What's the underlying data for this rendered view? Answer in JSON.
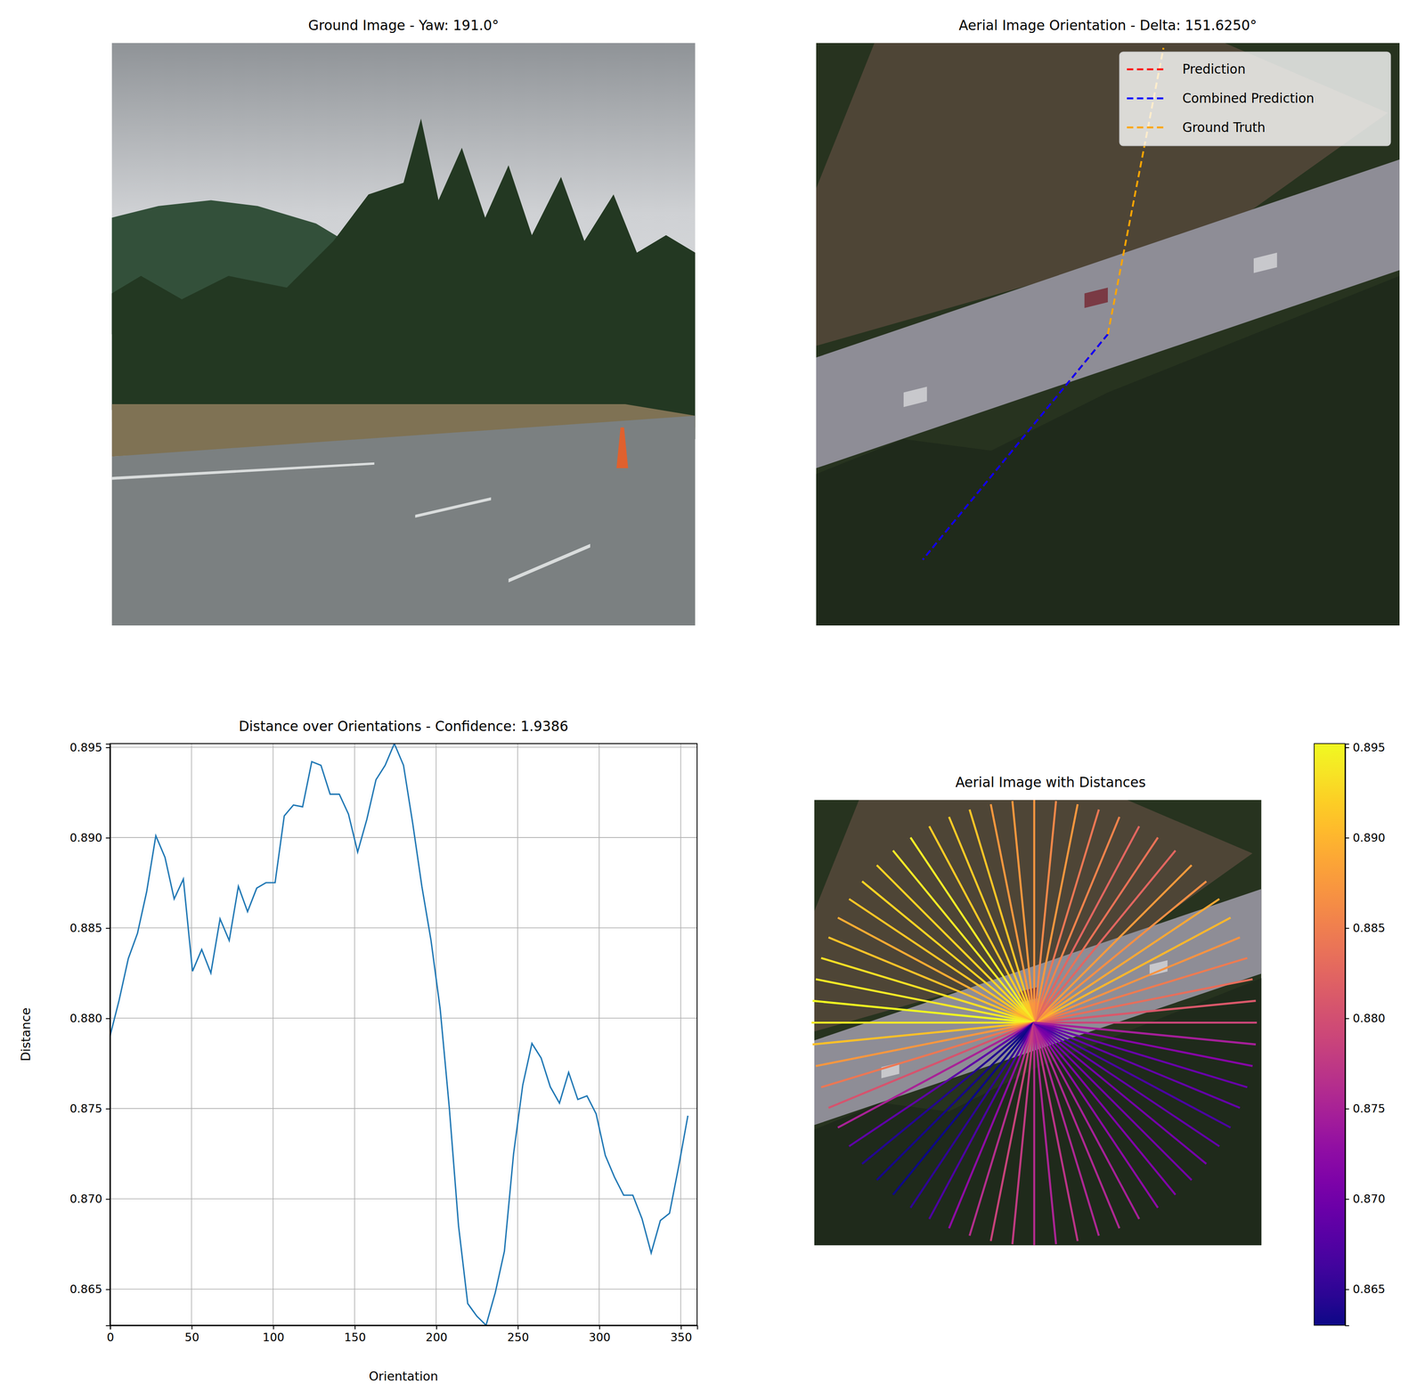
{
  "chart_data": [
    {
      "type": "image",
      "title": "Ground Image - Yaw: 191.0°"
    },
    {
      "type": "orientation",
      "title": "Aerial Image Orientation - Delta: 151.6250°",
      "legend": "upper right",
      "series": [
        {
          "name": "Prediction",
          "color": "red",
          "line_style": "dashed",
          "values": [
            230.625
          ]
        },
        {
          "name": "Combined Prediction",
          "color": "blue",
          "line_style": "dashed",
          "values": [
            230.625
          ]
        },
        {
          "name": "Ground Truth",
          "color": "orange",
          "line_style": "dashed",
          "values": [
            79.0
          ]
        }
      ]
    },
    {
      "type": "line",
      "title": "Distance over Orientations - Confidence: 1.9386",
      "x_label": "Orientation",
      "y_label": "Distance",
      "color": "#1f77b4",
      "grid": true,
      "x": [
        0,
        5.625,
        11.25,
        16.875,
        22.5,
        28.125,
        33.75,
        39.375,
        45,
        50.625,
        56.25,
        61.875,
        67.5,
        73.125,
        78.75,
        84.375,
        90,
        95.625,
        101.25,
        106.875,
        112.5,
        118.125,
        123.75,
        129.375,
        135,
        140.625,
        146.25,
        151.875,
        157.5,
        163.125,
        168.75,
        174.375,
        180,
        185.625,
        191.25,
        196.875,
        202.5,
        208.125,
        213.75,
        219.375,
        225,
        230.625,
        236.25,
        241.875,
        247.5,
        253.125,
        258.75,
        264.375,
        270,
        275.625,
        281.25,
        286.875,
        292.5,
        298.125,
        303.75,
        309.375,
        315,
        320.625,
        326.25,
        331.875,
        337.5,
        343.125,
        348.75,
        354.375
      ],
      "values": [
        0.879,
        0.881,
        0.8833,
        0.8847,
        0.887,
        0.8901,
        0.8889,
        0.8866,
        0.8877,
        0.8826,
        0.8838,
        0.8825,
        0.8855,
        0.8843,
        0.8873,
        0.8859,
        0.8872,
        0.8875,
        0.8875,
        0.8912,
        0.8918,
        0.8917,
        0.8942,
        0.894,
        0.8924,
        0.8924,
        0.8913,
        0.8892,
        0.891,
        0.8932,
        0.894,
        0.8952,
        0.894,
        0.8908,
        0.8873,
        0.8843,
        0.8805,
        0.875,
        0.8685,
        0.8642,
        0.8635,
        0.863,
        0.8648,
        0.8671,
        0.8725,
        0.8763,
        0.8786,
        0.8778,
        0.8762,
        0.8753,
        0.877,
        0.8755,
        0.8757,
        0.8747,
        0.8724,
        0.8712,
        0.8702,
        0.8702,
        0.8689,
        0.867,
        0.8688,
        0.8692,
        0.8718,
        0.8746
      ],
      "xlim": [
        0,
        360
      ],
      "ylim": [
        0.863,
        0.8952
      ],
      "xticks": [
        0,
        50,
        100,
        150,
        200,
        250,
        300,
        350
      ],
      "yticks": [
        0.865,
        {
          "value": 0.87,
          "label": "0.870"
        },
        0.875,
        {
          "value": 0.88,
          "label": "0.880"
        },
        0.885,
        {
          "value": 0.89,
          "label": "0.890"
        },
        0.895
      ]
    },
    {
      "type": "radial",
      "title": "Aerial Image with Distances",
      "x": [
        0,
        5.625,
        11.25,
        16.875,
        22.5,
        28.125,
        33.75,
        39.375,
        45,
        50.625,
        56.25,
        61.875,
        67.5,
        73.125,
        78.75,
        84.375,
        90,
        95.625,
        101.25,
        106.875,
        112.5,
        118.125,
        123.75,
        129.375,
        135,
        140.625,
        146.25,
        151.875,
        157.5,
        163.125,
        168.75,
        174.375,
        180,
        185.625,
        191.25,
        196.875,
        202.5,
        208.125,
        213.75,
        219.375,
        225,
        230.625,
        236.25,
        241.875,
        247.5,
        253.125,
        258.75,
        264.375,
        270,
        275.625,
        281.25,
        286.875,
        292.5,
        298.125,
        303.75,
        309.375,
        315,
        320.625,
        326.25,
        331.875,
        337.5,
        343.125,
        348.75,
        354.375
      ],
      "values": [
        0.879,
        0.881,
        0.8833,
        0.8847,
        0.887,
        0.8901,
        0.8889,
        0.8866,
        0.8877,
        0.8826,
        0.8838,
        0.8825,
        0.8855,
        0.8843,
        0.8873,
        0.8859,
        0.8872,
        0.8875,
        0.8875,
        0.8912,
        0.8918,
        0.8917,
        0.8942,
        0.894,
        0.8924,
        0.8924,
        0.8913,
        0.8892,
        0.891,
        0.8932,
        0.894,
        0.8952,
        0.894,
        0.8908,
        0.8873,
        0.8843,
        0.8805,
        0.875,
        0.8685,
        0.8642,
        0.8635,
        0.863,
        0.8648,
        0.8671,
        0.8725,
        0.8763,
        0.8786,
        0.8778,
        0.8762,
        0.8753,
        0.877,
        0.8755,
        0.8757,
        0.8747,
        0.8724,
        0.8712,
        0.8702,
        0.8702,
        0.8689,
        0.867,
        0.8688,
        0.8692,
        0.8718,
        0.8746
      ],
      "colorbar": {
        "range": [
          0.863,
          0.8952
        ],
        "ticks": [
          0.865,
          {
            "value": 0.87,
            "label": "0.870"
          },
          0.875,
          {
            "value": 0.88,
            "label": "0.880"
          },
          0.885,
          {
            "value": 0.89,
            "label": "0.890"
          },
          0.895
        ]
      }
    }
  ]
}
